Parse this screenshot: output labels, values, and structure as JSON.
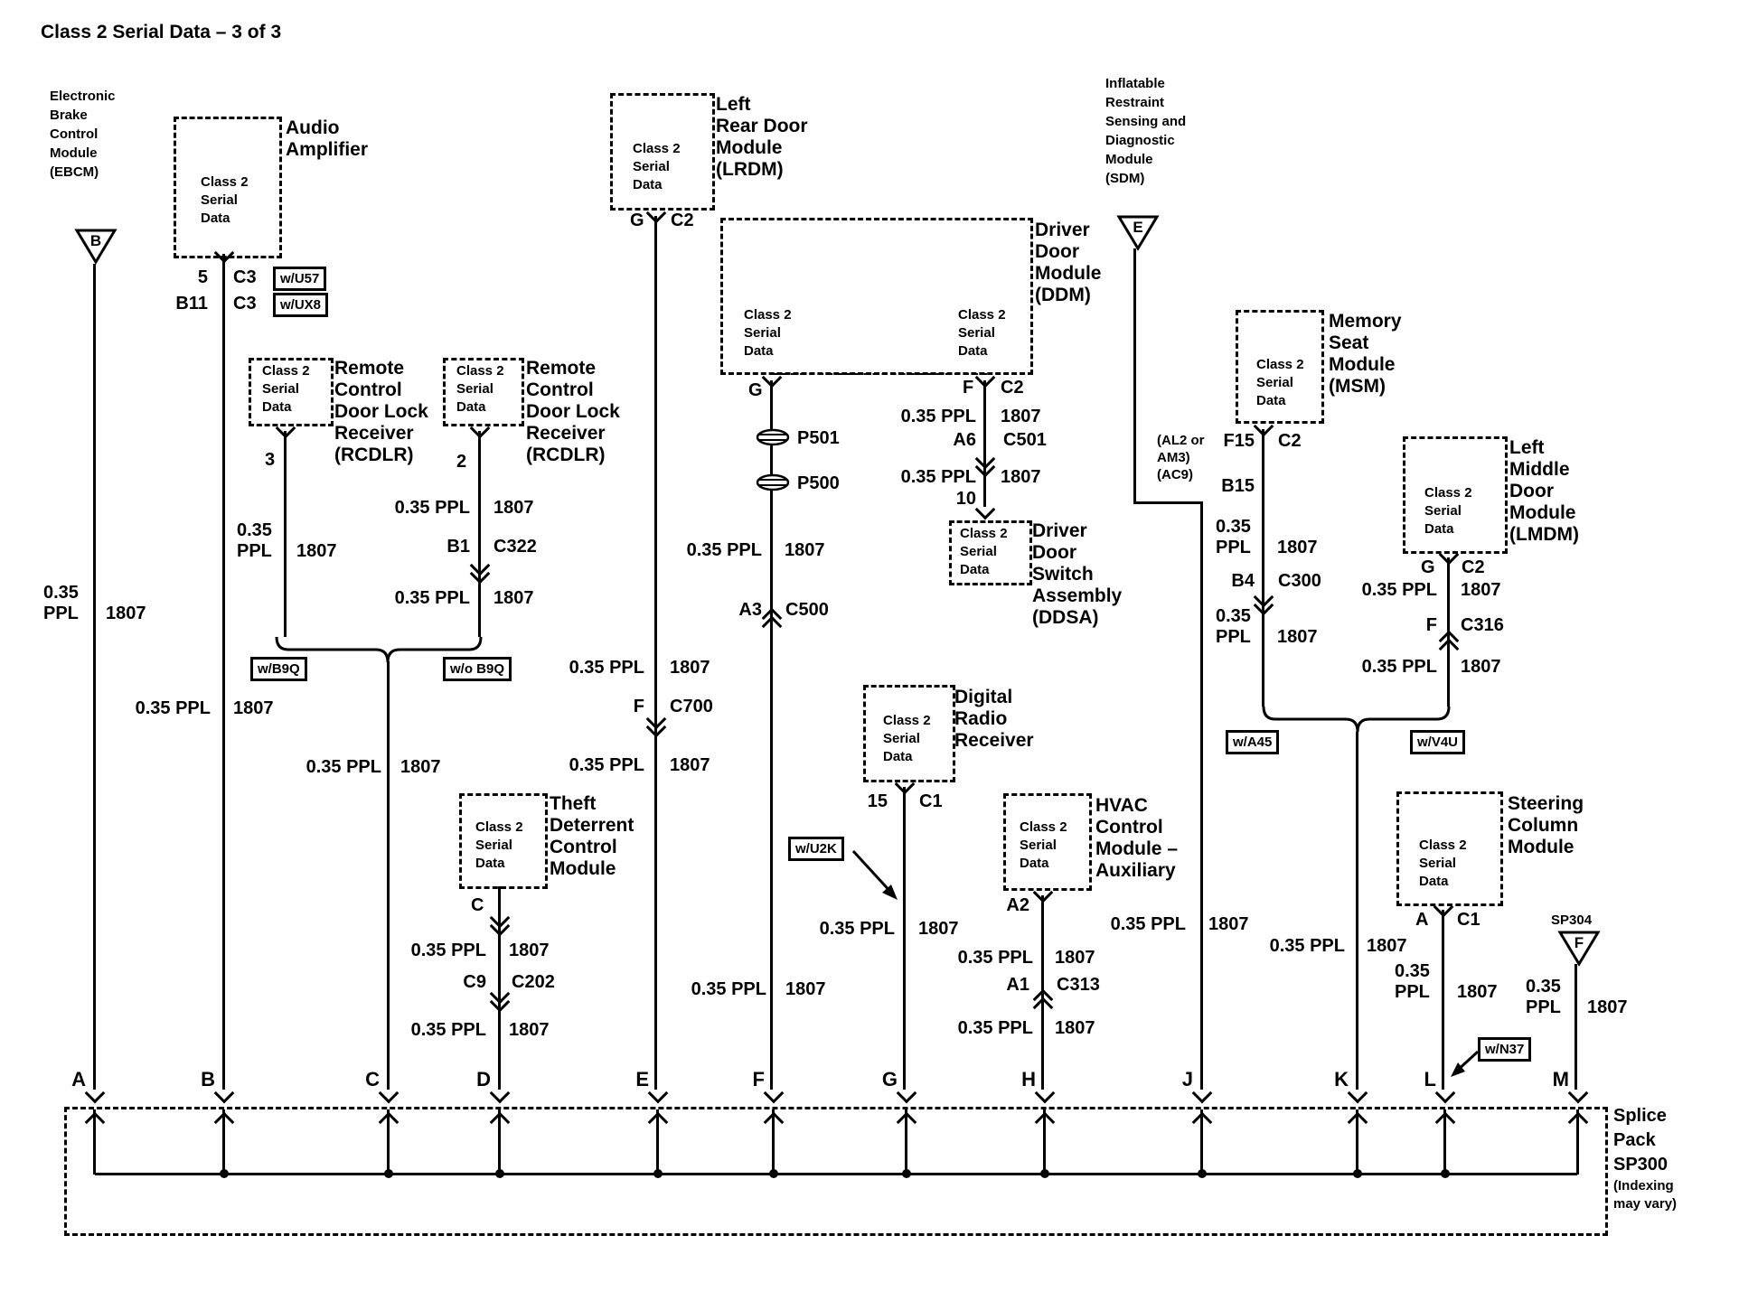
{
  "title": "Class 2 Serial Data – 3 of 3",
  "common": {
    "size_color": "0.35 PPL",
    "size": "0.35",
    "color": "PPL",
    "circuit": "1807",
    "class2": [
      "Class 2",
      "Serial",
      "Data"
    ]
  },
  "modules": {
    "ebcm": {
      "name": [
        "Electronic",
        "Brake",
        "Control",
        "Module",
        "(EBCM)"
      ],
      "triangle": "B"
    },
    "audio": {
      "name": [
        "Audio",
        "Amplifier"
      ],
      "rows": [
        {
          "pin": "5",
          "conn": "C3",
          "tag": "w/U57"
        },
        {
          "pin": "B11",
          "conn": "C3",
          "tag": "w/UX8"
        }
      ]
    },
    "rcdlr1": {
      "name": [
        "Remote",
        "Control",
        "Door Lock",
        "Receiver",
        "(RCDLR)"
      ],
      "pin": "3",
      "tag": "w/B9Q"
    },
    "rcdlr2": {
      "name": [
        "Remote",
        "Control",
        "Door Lock",
        "Receiver",
        "(RCDLR)"
      ],
      "pin": "2",
      "conn_pin": "B1",
      "conn": "C322",
      "tag": "w/o B9Q"
    },
    "theft": {
      "name": [
        "Theft",
        "Deterrent",
        "Control",
        "Module"
      ],
      "pin": "C",
      "conn_pin": "C9",
      "conn": "C202"
    },
    "lrdm": {
      "name": [
        "Left",
        "Rear Door",
        "Module",
        "(LRDM)"
      ],
      "pin": "G",
      "pin_conn": "C2",
      "conn_pin": "F",
      "conn": "C700"
    },
    "ddm": {
      "name": [
        "Driver",
        "Door",
        "Module",
        "(DDM)"
      ],
      "pin_left": "G",
      "grommets": [
        "P501",
        "P500"
      ],
      "left_conn_pin": "A3",
      "left_conn": "C500",
      "pin_right": "F",
      "pin_right_conn": "C2",
      "right_conn_pin": "A6",
      "right_conn": "C501",
      "switch_pin": "10"
    },
    "ddsa": {
      "name": [
        "Driver",
        "Door",
        "Switch",
        "Assembly",
        "(DDSA)"
      ]
    },
    "drr": {
      "name": [
        "Digital",
        "Radio",
        "Receiver"
      ],
      "pin": "15",
      "pin_conn": "C1",
      "tag": "w/U2K"
    },
    "hvac": {
      "name": [
        "HVAC",
        "Control",
        "Module –",
        "Auxiliary"
      ],
      "pin": "A2",
      "conn_pin": "A1",
      "conn": "C313"
    },
    "sdm": {
      "name": [
        "Inflatable",
        "Restraint",
        "Sensing and",
        "Diagnostic",
        "Module",
        "(SDM)"
      ],
      "triangle": "E"
    },
    "msm": {
      "name": [
        "Memory",
        "Seat",
        "Module",
        "(MSM)"
      ],
      "note": [
        "(AL2 or",
        "AM3)",
        "(AC9)"
      ],
      "pin": "F15",
      "pin_conn": "C2",
      "pin2": "B15",
      "conn_pin": "B4",
      "conn": "C300",
      "tag": "w/A45"
    },
    "lmdm": {
      "name": [
        "Left",
        "Middle",
        "Door",
        "Module",
        "(LMDM)"
      ],
      "pin": "G",
      "pin_conn": "C2",
      "conn_pin": "F",
      "conn": "C316",
      "tag": "w/V4U"
    },
    "scm": {
      "name": [
        "Steering",
        "Column",
        "Module"
      ],
      "pin": "A",
      "pin_conn": "C1",
      "tag": "w/N37"
    },
    "sp304": {
      "label": "SP304",
      "triangle": "F"
    }
  },
  "splice": {
    "big": [
      "Splice",
      "Pack",
      "SP300"
    ],
    "small": [
      "(Indexing",
      "may vary)"
    ]
  },
  "bus_letters": [
    "A",
    "B",
    "C",
    "D",
    "E",
    "F",
    "G",
    "H",
    "J",
    "K",
    "L",
    "M"
  ]
}
